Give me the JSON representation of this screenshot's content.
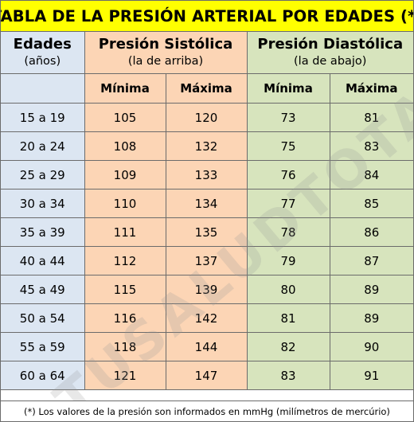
{
  "title": "TABLA DE LA PRESIÓN ARTERIAL POR EDADES (*)",
  "headers": {
    "age": {
      "main": "Edades",
      "sub": "(años)"
    },
    "systolic": {
      "main": "Presión Sistólica",
      "sub": "(la de arriba)"
    },
    "diastolic": {
      "main": "Presión Diastólica",
      "sub": "(la de abajo)"
    }
  },
  "subheaders": {
    "sys_min": "Mínima",
    "sys_max": "Máxima",
    "dia_min": "Mínima",
    "dia_max": "Máxima"
  },
  "rows": [
    {
      "age": "15 a 19",
      "sys_min": "105",
      "sys_max": "120",
      "dia_min": "73",
      "dia_max": "81"
    },
    {
      "age": "20 a 24",
      "sys_min": "108",
      "sys_max": "132",
      "dia_min": "75",
      "dia_max": "83"
    },
    {
      "age": "25 a 29",
      "sys_min": "109",
      "sys_max": "133",
      "dia_min": "76",
      "dia_max": "84"
    },
    {
      "age": "30 a 34",
      "sys_min": "110",
      "sys_max": "134",
      "dia_min": "77",
      "dia_max": "85"
    },
    {
      "age": "35 a 39",
      "sys_min": "111",
      "sys_max": "135",
      "dia_min": "78",
      "dia_max": "86"
    },
    {
      "age": "40 a 44",
      "sys_min": "112",
      "sys_max": "137",
      "dia_min": "79",
      "dia_max": "87"
    },
    {
      "age": "45 a 49",
      "sys_min": "115",
      "sys_max": "139",
      "dia_min": "80",
      "dia_max": "89"
    },
    {
      "age": "50 a 54",
      "sys_min": "116",
      "sys_max": "142",
      "dia_min": "81",
      "dia_max": "89"
    },
    {
      "age": "55 a 59",
      "sys_min": "118",
      "sys_max": "144",
      "dia_min": "82",
      "dia_max": "90"
    },
    {
      "age": "60 a 64",
      "sys_min": "121",
      "sys_max": "147",
      "dia_min": "83",
      "dia_max": "91"
    }
  ],
  "footnote": "(*) Los valores de la presión son informados en mmHg (milímetros de mercúrio)",
  "watermark": "TUSALUDTOTAL.COM",
  "colors": {
    "title_bg": "#ffff00",
    "age_bg": "#dce6f2",
    "systolic_bg": "#fcd5b5",
    "diastolic_bg": "#d7e4bd",
    "border": "#6b6b6b"
  }
}
